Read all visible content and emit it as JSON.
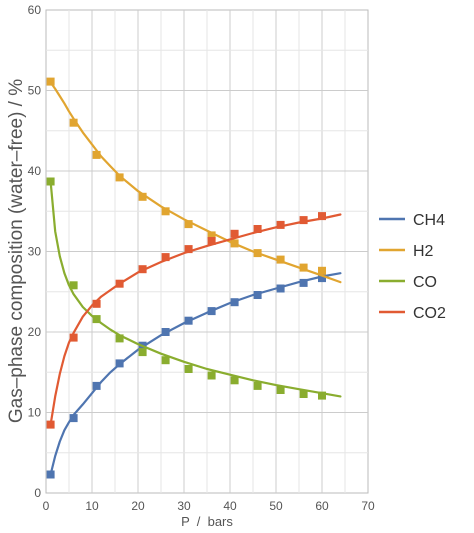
{
  "chart_data": {
    "type": "line",
    "title": "",
    "xlabel": "P  /  bars",
    "ylabel": "Gas–phase composition (water–free) / %",
    "xlim": [
      0,
      70
    ],
    "ylim": [
      0,
      60
    ],
    "x_ticks": [
      "0",
      "10",
      "20",
      "30",
      "40",
      "50",
      "60",
      "70"
    ],
    "y_ticks": [
      "0",
      "10",
      "20",
      "30",
      "40",
      "50",
      "60"
    ],
    "grid": true,
    "legend_position": "right",
    "points_x": [
      1,
      6,
      11,
      16,
      21,
      26,
      31,
      36,
      41,
      46,
      51,
      56,
      60
    ],
    "fit_x": [
      1,
      2,
      3,
      4,
      5,
      6,
      8,
      10,
      12,
      14,
      16,
      20,
      25,
      30,
      35,
      40,
      45,
      50,
      55,
      60,
      64
    ],
    "series": [
      {
        "name": "CH4",
        "color": "#4f75b0",
        "points": [
          2.3,
          9.3,
          13.3,
          16.1,
          18.3,
          20.0,
          21.4,
          22.6,
          23.7,
          24.6,
          25.4,
          26.1,
          26.7
        ],
        "fit": [
          2.3,
          4.6,
          6.4,
          7.8,
          8.8,
          9.7,
          11.0,
          12.4,
          13.8,
          15.0,
          16.0,
          17.8,
          19.6,
          21.1,
          22.4,
          23.6,
          24.6,
          25.4,
          26.2,
          26.9,
          27.3
        ]
      },
      {
        "name": "H2",
        "color": "#e1a530",
        "points": [
          51.1,
          46.0,
          42.0,
          39.2,
          36.8,
          35.0,
          33.4,
          32.0,
          31.0,
          29.8,
          29.0,
          28.0,
          27.6
        ],
        "fit": [
          51.0,
          50.2,
          49.3,
          48.4,
          47.4,
          46.5,
          44.8,
          43.3,
          41.8,
          40.6,
          39.4,
          37.5,
          35.6,
          34.0,
          32.6,
          31.2,
          30.0,
          29.0,
          28.0,
          27.0,
          26.2
        ]
      },
      {
        "name": "CO",
        "color": "#8aad2f",
        "points": [
          38.7,
          25.8,
          21.6,
          19.2,
          17.5,
          16.5,
          15.4,
          14.6,
          14.0,
          13.3,
          12.8,
          12.3,
          12.1
        ],
        "fit": [
          38.7,
          32.5,
          29.4,
          27.3,
          25.8,
          24.7,
          23.1,
          22.0,
          21.1,
          20.3,
          19.6,
          18.5,
          17.3,
          16.3,
          15.4,
          14.7,
          14.0,
          13.4,
          12.9,
          12.4,
          12.0
        ]
      },
      {
        "name": "CO2",
        "color": "#e15a33",
        "points": [
          8.5,
          19.3,
          23.5,
          26.0,
          27.8,
          29.3,
          30.3,
          31.3,
          32.2,
          32.8,
          33.3,
          33.9,
          34.4
        ],
        "fit": [
          8.5,
          12.0,
          14.8,
          17.0,
          18.7,
          19.9,
          21.9,
          23.3,
          24.4,
          25.2,
          26.0,
          27.4,
          28.7,
          29.8,
          30.7,
          31.5,
          32.3,
          33.0,
          33.6,
          34.1,
          34.6
        ]
      }
    ]
  }
}
